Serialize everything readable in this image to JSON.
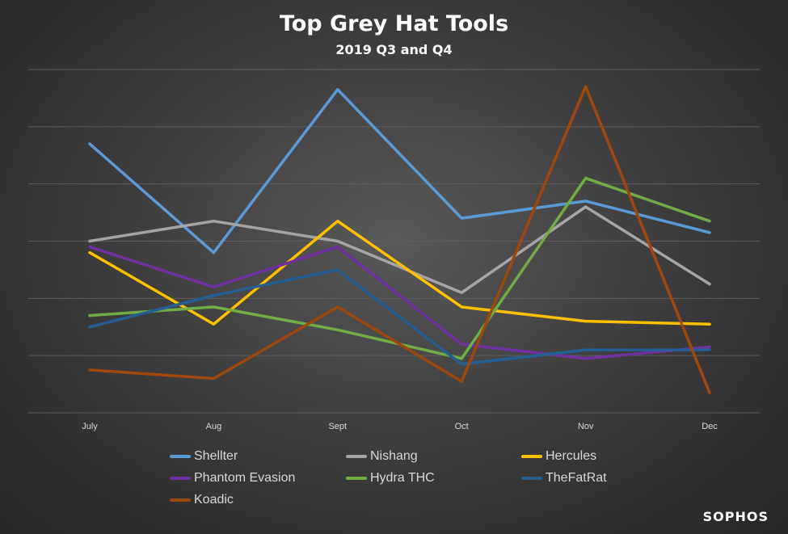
{
  "header": {
    "title": "Top Grey Hat Tools",
    "subtitle": "2019 Q3 and Q4"
  },
  "brand": {
    "logo_text": "SOPHOS"
  },
  "chart_data": {
    "type": "line",
    "title": "Top Grey Hat Tools",
    "subtitle": "2019 Q3 and Q4",
    "xlabel": "",
    "ylabel": "",
    "categories": [
      "July",
      "Aug",
      "Sept",
      "Oct",
      "Nov",
      "Dec"
    ],
    "ylim": [
      0,
      6
    ],
    "grid": true,
    "y_tick_labels_shown": false,
    "legend_position": "bottom",
    "series": [
      {
        "name": "Shellter",
        "color": "#5b9bd5",
        "values": [
          4.7,
          2.8,
          5.65,
          3.4,
          3.7,
          3.15
        ]
      },
      {
        "name": "Nishang",
        "color": "#a5a5a5",
        "values": [
          3.0,
          3.35,
          3.0,
          2.1,
          3.6,
          2.25
        ]
      },
      {
        "name": "Hercules",
        "color": "#ffc000",
        "values": [
          2.8,
          1.55,
          3.35,
          1.85,
          1.6,
          1.55
        ]
      },
      {
        "name": "Phantom Evasion",
        "color": "#7030a0",
        "values": [
          2.9,
          2.2,
          2.9,
          1.2,
          0.95,
          1.15
        ]
      },
      {
        "name": "Hydra THC",
        "color": "#70ad47",
        "values": [
          1.7,
          1.85,
          1.45,
          0.95,
          4.1,
          3.35
        ]
      },
      {
        "name": "TheFatRat",
        "color": "#255e91",
        "values": [
          1.5,
          2.05,
          2.5,
          0.85,
          1.1,
          1.1
        ]
      },
      {
        "name": "Koadic",
        "color": "#9e480e",
        "values": [
          0.75,
          0.6,
          1.85,
          0.55,
          5.7,
          0.35
        ]
      }
    ]
  }
}
